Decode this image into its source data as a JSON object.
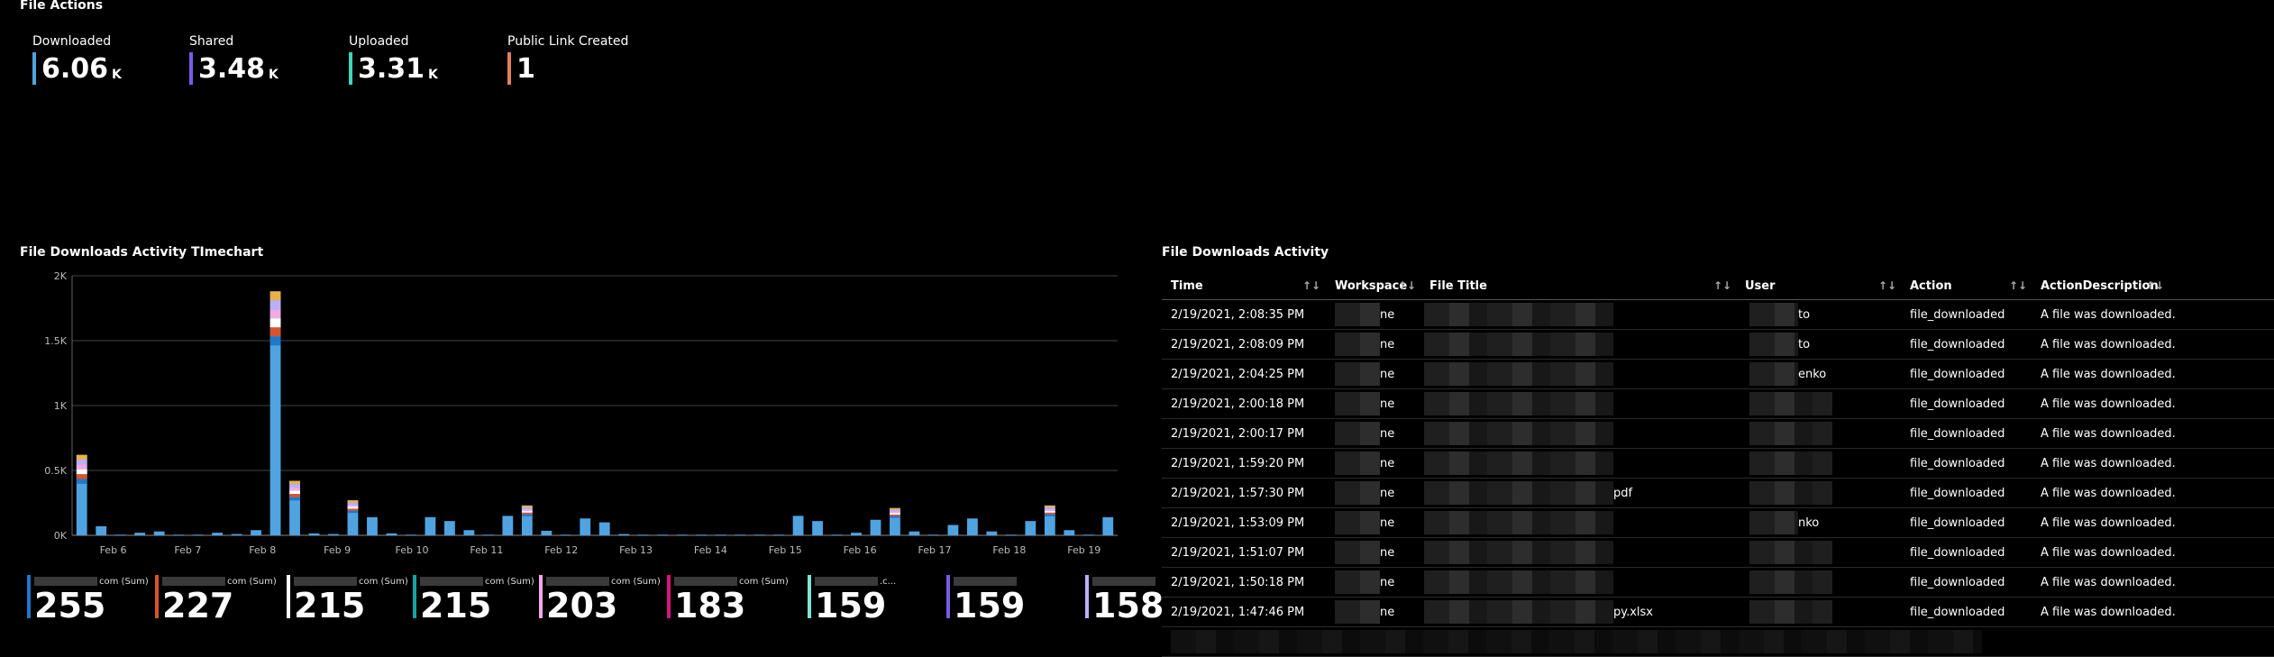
{
  "file_actions": {
    "title": "File Actions",
    "kpis": [
      {
        "label": "Downloaded",
        "value": "6.06",
        "unit": "K",
        "color": "#4fa3e0"
      },
      {
        "label": "Shared",
        "value": "3.48",
        "unit": "K",
        "color": "#7b5ce8"
      },
      {
        "label": "Uploaded",
        "value": "3.31",
        "unit": "K",
        "color": "#3fd6b8"
      },
      {
        "label": "Public Link Created",
        "value": "1",
        "unit": "",
        "color": "#e2815d"
      }
    ]
  },
  "timechart": {
    "title": "File Downloads Activity TImechart"
  },
  "chart_data": {
    "type": "bar",
    "title": "File Downloads Activity TImechart",
    "ylim": [
      0,
      2000
    ],
    "yticks": [
      "0K",
      "0.5K",
      "1K",
      "1.5K",
      "2K"
    ],
    "ytick_values": [
      0,
      500,
      1000,
      1500,
      2000
    ],
    "xticks": [
      "Feb 6",
      "Feb 7",
      "Feb 8",
      "Feb 9",
      "Feb 10",
      "Feb 11",
      "Feb 12",
      "Feb 13",
      "Feb 14",
      "Feb 15",
      "Feb 16",
      "Feb 17",
      "Feb 18",
      "Feb 19"
    ],
    "values": [
      620,
      70,
      5,
      20,
      30,
      5,
      5,
      20,
      10,
      40,
      1880,
      420,
      15,
      10,
      270,
      140,
      15,
      5,
      140,
      110,
      40,
      5,
      150,
      230,
      35,
      5,
      130,
      100,
      10,
      5,
      5,
      5,
      5,
      5,
      5,
      5,
      5,
      150,
      110,
      5,
      20,
      120,
      210,
      30,
      5,
      80,
      130,
      30,
      5,
      110,
      230,
      40,
      5,
      140
    ],
    "grid": true
  },
  "legend": [
    {
      "label": "com (Sum)",
      "value": "255",
      "color": "#1f78c8"
    },
    {
      "label": "com (Sum)",
      "value": "227",
      "color": "#d9522e"
    },
    {
      "label": "com (Sum)",
      "value": "215",
      "color": "#ffffff"
    },
    {
      "label": "com (Sum)",
      "value": "215",
      "color": "#16a3a3"
    },
    {
      "label": "com (Sum)",
      "value": "203",
      "color": "#f2a8e6"
    },
    {
      "label": "com (Sum)",
      "value": "183",
      "color": "#d6137a"
    },
    {
      "label": ".c...",
      "value": "159",
      "color": "#7fe3d0"
    },
    {
      "label": "",
      "value": "159",
      "color": "#7a5de8"
    },
    {
      "label": "",
      "value": "158",
      "color": "#b9b0f5"
    }
  ],
  "table": {
    "title": "File Downloads Activity",
    "headers": [
      "Time",
      "Workspace",
      "File Title",
      "User",
      "Action",
      "ActionDescription"
    ],
    "rows": [
      {
        "time": "2/19/2021, 2:08:35 PM",
        "ws": "ne",
        "file": "",
        "user": "to",
        "action": "file_downloaded",
        "desc": "A file was downloaded."
      },
      {
        "time": "2/19/2021, 2:08:09 PM",
        "ws": "ne",
        "file": "",
        "user": "to",
        "action": "file_downloaded",
        "desc": "A file was downloaded."
      },
      {
        "time": "2/19/2021, 2:04:25 PM",
        "ws": "ne",
        "file": "",
        "user": "enko",
        "action": "file_downloaded",
        "desc": "A file was downloaded."
      },
      {
        "time": "2/19/2021, 2:00:18 PM",
        "ws": "ne",
        "file": "",
        "user": "",
        "action": "file_downloaded",
        "desc": "A file was downloaded."
      },
      {
        "time": "2/19/2021, 2:00:17 PM",
        "ws": "ne",
        "file": "",
        "user": "",
        "action": "file_downloaded",
        "desc": "A file was downloaded."
      },
      {
        "time": "2/19/2021, 1:59:20 PM",
        "ws": "ne",
        "file": "",
        "user": "",
        "action": "file_downloaded",
        "desc": "A file was downloaded."
      },
      {
        "time": "2/19/2021, 1:57:30 PM",
        "ws": "ne",
        "file": "pdf",
        "user": "",
        "action": "file_downloaded",
        "desc": "A file was downloaded."
      },
      {
        "time": "2/19/2021, 1:53:09 PM",
        "ws": "ne",
        "file": "",
        "user": "nko",
        "action": "file_downloaded",
        "desc": "A file was downloaded."
      },
      {
        "time": "2/19/2021, 1:51:07 PM",
        "ws": "ne",
        "file": "",
        "user": "",
        "action": "file_downloaded",
        "desc": "A file was downloaded."
      },
      {
        "time": "2/19/2021, 1:50:18 PM",
        "ws": "ne",
        "file": "",
        "user": "",
        "action": "file_downloaded",
        "desc": "A file was downloaded."
      },
      {
        "time": "2/19/2021, 1:47:46 PM",
        "ws": "ne",
        "file": "py.xlsx",
        "user": "",
        "action": "file_downloaded",
        "desc": "A file was downloaded."
      }
    ]
  }
}
